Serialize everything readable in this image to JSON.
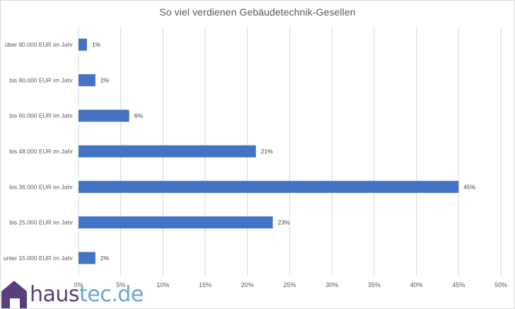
{
  "chart_data": {
    "type": "bar",
    "orientation": "horizontal",
    "title": "So viel verdienen Gebäudetechnik-Gesellen",
    "categories": [
      "über 80.000 EUR im Jahr",
      "bis 80.000 EUR im Jahr",
      "bis 60.000 EUR im Jahr",
      "bis 48.000 EUR im Jahr",
      "bis 36.000 EUR im Jahr",
      "bis 25.000 EUR im Jahr",
      "unter 15.000 EUR im Jahr"
    ],
    "values": [
      1,
      2,
      6,
      21,
      45,
      23,
      2
    ],
    "data_labels": [
      "1%",
      "2%",
      "6%",
      "21%",
      "45%",
      "23%",
      "2%"
    ],
    "xlim": [
      0,
      50
    ],
    "x_ticks": [
      "0%",
      "5%",
      "10%",
      "15%",
      "20%",
      "25%",
      "30%",
      "35%",
      "40%",
      "45%",
      "50%"
    ],
    "xlabel": "",
    "ylabel": "",
    "grid": "vertical",
    "bar_color": "#4472c4"
  },
  "logo": {
    "part1": "haus",
    "part2": "tec.de",
    "color1": "#5a3f7c",
    "color2": "#6ba3d6"
  }
}
